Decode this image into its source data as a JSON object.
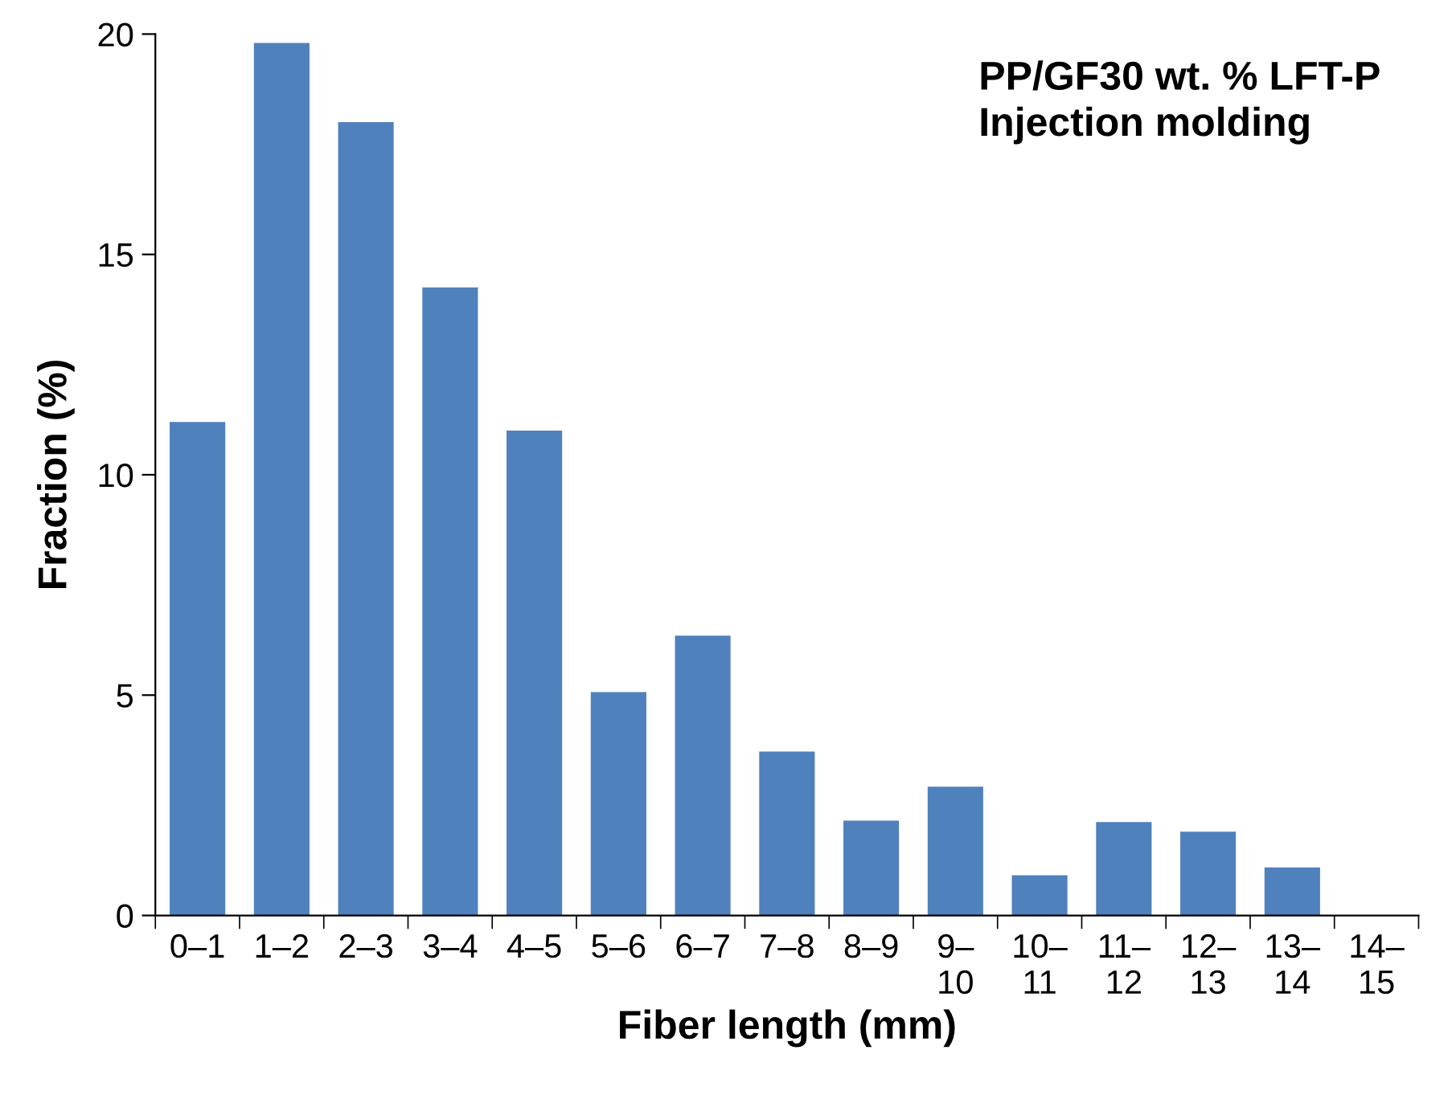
{
  "chart_data": {
    "type": "bar",
    "xlabel": "Fiber length (mm)",
    "ylabel": "Fraction (%)",
    "annotations": [
      "PP/GF30 wt. % LFT-P",
      "Injection molding"
    ],
    "categories": [
      "0–1",
      "1–2",
      "2–3",
      "3–4",
      "4–5",
      "5–6",
      "6–7",
      "7–8",
      "8–9",
      "9–10",
      "10–11",
      "11–12",
      "12–13",
      "13–14",
      "14–15"
    ],
    "values": [
      11.2,
      19.8,
      18.0,
      14.25,
      11.0,
      5.07,
      6.35,
      3.72,
      2.15,
      2.92,
      0.91,
      2.12,
      1.9,
      1.09,
      0
    ],
    "color": "#4f81bd",
    "ylim": [
      0,
      20
    ],
    "yticks": [
      0,
      5,
      10,
      15,
      20
    ],
    "grid": false
  }
}
